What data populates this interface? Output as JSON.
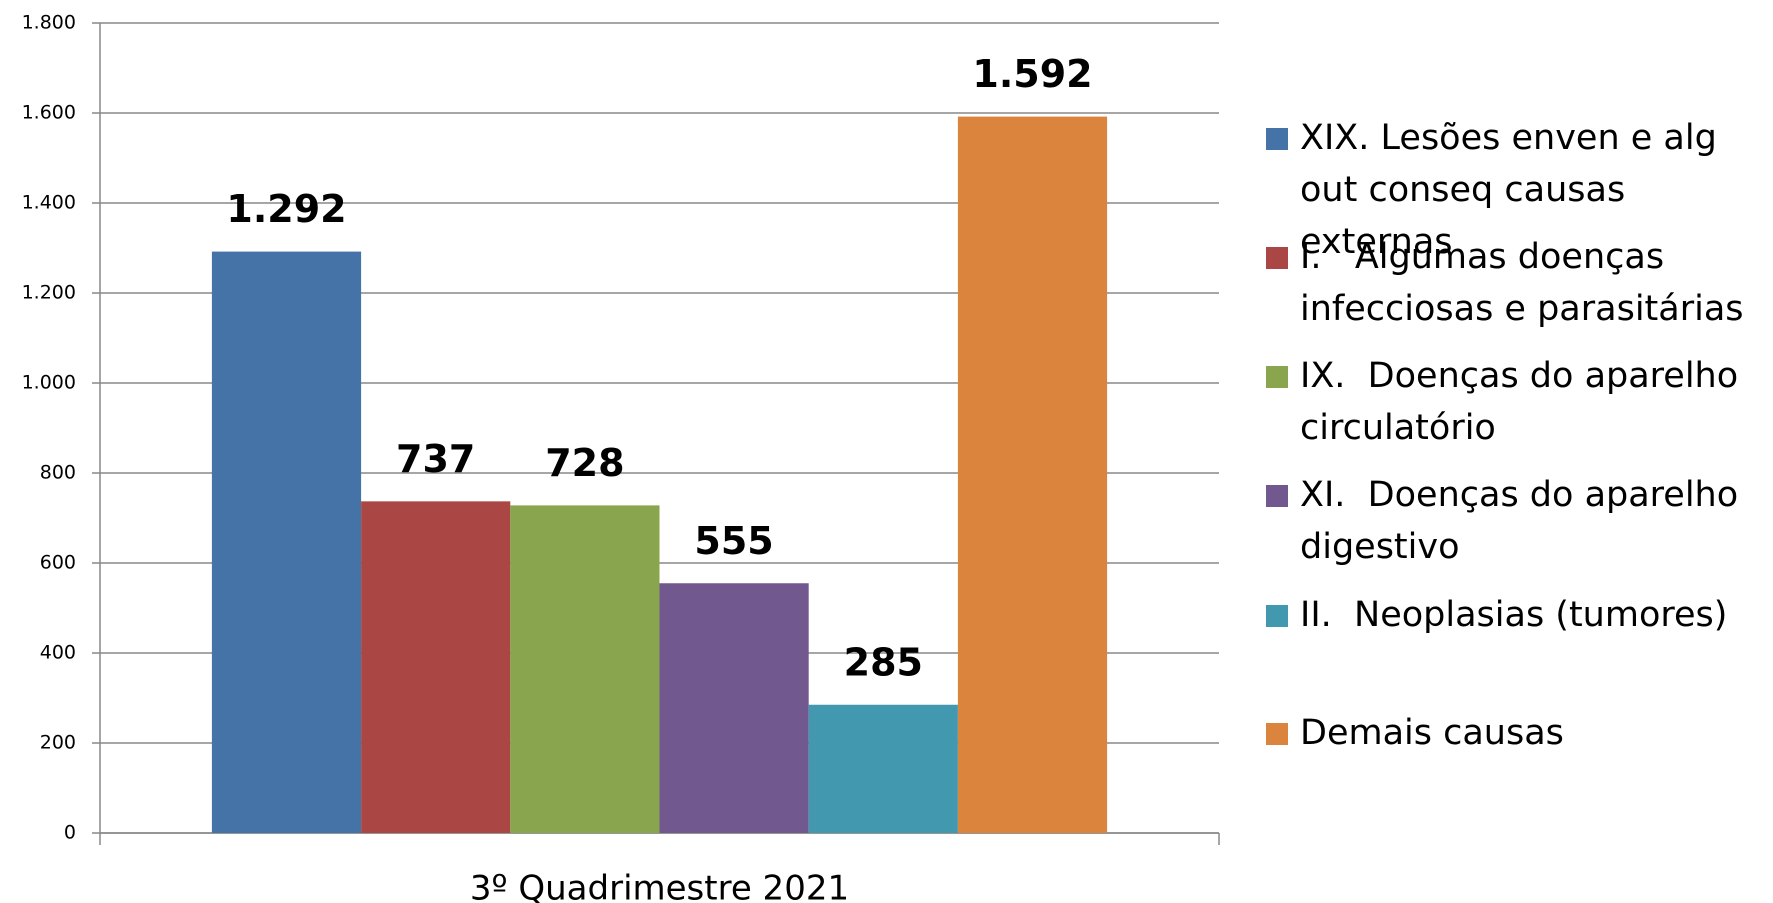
{
  "chart_data": {
    "type": "bar",
    "categories": [
      "3º Quadrimestre 2021"
    ],
    "series": [
      {
        "name": "XIX. Lesões enven e alg out conseq causas externas",
        "color": "#4572a7",
        "values": [
          1292
        ],
        "value_labels": [
          "1.292"
        ]
      },
      {
        "name": "I.   Algumas doenças infecciosas e parasitárias",
        "color": "#aa4643",
        "values": [
          737
        ]
      },
      {
        "name": "IX.  Doenças do aparelho circulatório",
        "color": "#89a54e",
        "values": [
          728
        ]
      },
      {
        "name": "XI.  Doenças do aparelho digestivo",
        "color": "#71588f",
        "values": [
          555
        ]
      },
      {
        "name": "II.  Neoplasias (tumores)",
        "color": "#4198af",
        "values": [
          285
        ]
      },
      {
        "name": "Demais causas",
        "color": "#db843d",
        "values": [
          1592
        ],
        "value_labels": [
          "1.592"
        ]
      }
    ],
    "ylim": [
      0,
      1800
    ],
    "yticks": [
      0,
      200,
      400,
      600,
      800,
      {
        "value": 1000,
        "label": "1.000"
      },
      {
        "value": 1200,
        "label": "1.200"
      },
      {
        "value": 1400,
        "label": "1.400"
      },
      {
        "value": 1600,
        "label": "1.600"
      },
      {
        "value": 1800,
        "label": "1.800"
      }
    ],
    "grid": true,
    "legend": "right"
  }
}
